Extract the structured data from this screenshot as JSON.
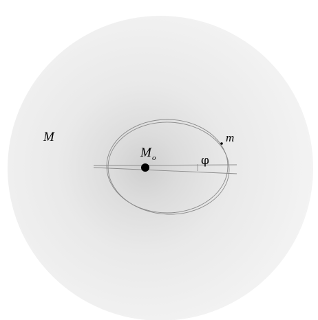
{
  "labels": {
    "outer_mass": "M",
    "central_mass": "M",
    "central_mass_subscript": "o",
    "orbiting_mass": "m",
    "angle": "φ"
  },
  "colors": {
    "background": "#ffffff",
    "sphere_center": "#d6d6d6",
    "sphere_edge": "#f4f4f4",
    "orbit_line": "#8a8a8a",
    "mass_dot": "#000000"
  }
}
